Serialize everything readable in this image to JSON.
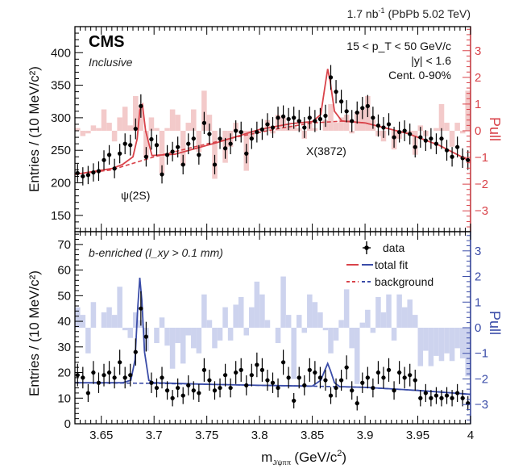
{
  "header": {
    "lumi_value": "1.7 nb",
    "lumi_exp": "-1",
    "lumi_system": "(PbPb 5.02 TeV)"
  },
  "colors": {
    "top_fit": "#d9434a",
    "top_pull_fill": "#f3caca",
    "top_pull_axis": "#d9434a",
    "bottom_fit": "#3a4ca8",
    "bottom_pull_fill": "#cdd3ee",
    "bottom_pull_axis": "#3a4ca8",
    "data": "#000000"
  },
  "chart_data": [
    {
      "type": "scatter",
      "panel": "top",
      "title": "CMS",
      "subtitle": "Inclusive",
      "ylabel": "Entries / (10 MeV/c²)",
      "y2label": "Pull",
      "xlim": [
        3.625,
        4.0
      ],
      "ylim": [
        125,
        440
      ],
      "y2lim": [
        -3.78,
        3.9
      ],
      "yticks": [
        "150",
        "200",
        "250",
        "300",
        "350",
        "400"
      ],
      "y2ticks": [
        "3",
        "2",
        "1",
        "0",
        "-1",
        "-2",
        "-3"
      ],
      "cuts": [
        "15 < p_T < 50 GeV/c",
        "|y| < 1.6",
        "Cent. 0-90%"
      ],
      "peak_labels": [
        "ψ(2S)",
        "X(3872)"
      ],
      "x": [
        3.6275,
        3.6325,
        3.6375,
        3.6425,
        3.6475,
        3.6525,
        3.6575,
        3.6625,
        3.6675,
        3.6725,
        3.6775,
        3.6825,
        3.6875,
        3.6925,
        3.6975,
        3.7025,
        3.7075,
        3.7125,
        3.7175,
        3.7225,
        3.7275,
        3.7325,
        3.7375,
        3.7425,
        3.7475,
        3.7525,
        3.7575,
        3.7625,
        3.7675,
        3.7725,
        3.7775,
        3.7825,
        3.7875,
        3.7925,
        3.7975,
        3.8025,
        3.8075,
        3.8125,
        3.8175,
        3.8225,
        3.8275,
        3.8325,
        3.8375,
        3.8425,
        3.8475,
        3.8525,
        3.8575,
        3.8625,
        3.8675,
        3.8725,
        3.8775,
        3.8825,
        3.8875,
        3.8925,
        3.8975,
        3.9025,
        3.9075,
        3.9125,
        3.9175,
        3.9225,
        3.9275,
        3.9325,
        3.9375,
        3.9425,
        3.9475,
        3.9525,
        3.9575,
        3.9625,
        3.9675,
        3.9725,
        3.9775,
        3.9825,
        3.9875,
        3.9925,
        3.9975
      ],
      "y": [
        215,
        210,
        212,
        216,
        218,
        235,
        243,
        222,
        245,
        260,
        258,
        283,
        318,
        240,
        267,
        258,
        213,
        243,
        248,
        255,
        228,
        260,
        268,
        243,
        292,
        275,
        228,
        268,
        253,
        260,
        280,
        278,
        245,
        268,
        278,
        282,
        290,
        285,
        300,
        302,
        298,
        300,
        295,
        285,
        300,
        295,
        298,
        303,
        362,
        340,
        325,
        310,
        295,
        308,
        315,
        318,
        300,
        288,
        285,
        290,
        270,
        278,
        280,
        275,
        255,
        270,
        265,
        268,
        260,
        268,
        250,
        240,
        255,
        238,
        235
      ],
      "yerr": [
        14,
        14,
        14,
        14,
        15,
        15,
        15,
        15,
        15,
        16,
        16,
        16,
        18,
        15,
        16,
        16,
        14,
        15,
        15,
        16,
        15,
        16,
        16,
        15,
        17,
        16,
        15,
        16,
        16,
        16,
        16,
        16,
        15,
        16,
        16,
        16,
        17,
        16,
        17,
        17,
        17,
        17,
        17,
        16,
        17,
        17,
        17,
        17,
        19,
        18,
        18,
        17,
        17,
        17,
        17,
        17,
        17,
        17,
        16,
        17,
        16,
        16,
        16,
        16,
        16,
        16,
        16,
        16,
        16,
        16,
        16,
        15,
        16,
        15,
        15
      ],
      "pull_x_edges": [
        3.625,
        3.63,
        3.635,
        3.64,
        3.645,
        3.65,
        3.655,
        3.66,
        3.665,
        3.67,
        3.675,
        3.68,
        3.685,
        3.69,
        3.695,
        3.7,
        3.705,
        3.71,
        3.715,
        3.72,
        3.725,
        3.73,
        3.735,
        3.74,
        3.745,
        3.75,
        3.755,
        3.76,
        3.765,
        3.77,
        3.775,
        3.78,
        3.785,
        3.79,
        3.795,
        3.8,
        3.805,
        3.81,
        3.815,
        3.82,
        3.825,
        3.83,
        3.835,
        3.84,
        3.845,
        3.85,
        3.855,
        3.86,
        3.865,
        3.87,
        3.875,
        3.88,
        3.885,
        3.89,
        3.895,
        3.9,
        3.905,
        3.91,
        3.915,
        3.92,
        3.925,
        3.93,
        3.935,
        3.94,
        3.945,
        3.95,
        3.955,
        3.96,
        3.965,
        3.97,
        3.975,
        3.98,
        3.985,
        3.99,
        3.995,
        4.0
      ],
      "pull": [
        0.1,
        -0.2,
        -0.1,
        0.2,
        0.1,
        0.8,
        0.3,
        -0.4,
        0.5,
        0.9,
        0.2,
        1.3,
        0.9,
        -1.0,
        0.5,
        0.1,
        -1.6,
        0.1,
        0.8,
        0.6,
        -1.3,
        0.3,
        0.8,
        -0.8,
        1.5,
        0.6,
        -1.8,
        0.0,
        -1.2,
        -0.6,
        0.3,
        -0.1,
        -1.5,
        -0.3,
        0.0,
        0.1,
        0.4,
        -0.1,
        0.6,
        0.5,
        0.2,
        0.2,
        0.1,
        -0.3,
        0.3,
        0.1,
        0.0,
        0.4,
        1.0,
        0.3,
        0.5,
        0.6,
        -0.1,
        0.7,
        0.8,
        1.3,
        0.4,
        -0.2,
        -0.4,
        0.0,
        -0.7,
        -0.3,
        0.0,
        -0.1,
        -0.9,
        0.2,
        -0.2,
        0.0,
        0.1,
        1.0,
        0.3,
        -0.6,
        0.3,
        -0.1,
        1.5
      ],
      "total_fit": {
        "x": [
          3.625,
          3.66,
          3.67,
          3.68,
          3.684,
          3.6865,
          3.689,
          3.692,
          3.698,
          3.72,
          3.76,
          3.8,
          3.83,
          3.85,
          3.858,
          3.862,
          3.8646,
          3.867,
          3.871,
          3.878,
          3.9,
          3.94,
          3.97,
          4.0
        ],
        "y": [
          213,
          222,
          228,
          240,
          268,
          312,
          320,
          280,
          242,
          244,
          262,
          282,
          291,
          294,
          305,
          348,
          375,
          355,
          310,
          295,
          292,
          276,
          258,
          233
        ]
      },
      "background_fit": {
        "x": [
          3.625,
          3.66,
          3.7,
          3.74,
          3.78,
          3.82,
          3.85,
          3.88,
          3.9,
          3.94,
          3.97,
          4.0
        ],
        "y": [
          213,
          220,
          240,
          256,
          271,
          284,
          292,
          295,
          292,
          276,
          258,
          233
        ]
      }
    },
    {
      "type": "scatter",
      "panel": "bottom",
      "subtitle": "b-enriched (l_xy > 0.1 mm)",
      "ylabel": "Entries / (10 MeV/c²)",
      "y2label": "Pull",
      "xlabel": "m_J/ψππ (GeV/c²)",
      "xlim": [
        3.625,
        4.0
      ],
      "ylim": [
        0,
        75
      ],
      "y2lim": [
        -3.75,
        3.75
      ],
      "yticks": [
        "0",
        "10",
        "20",
        "30",
        "40",
        "50",
        "60",
        "70"
      ],
      "y2ticks": [
        "3",
        "2",
        "1",
        "0",
        "-1",
        "-2",
        "-3"
      ],
      "xticks": [
        "3.65",
        "3.7",
        "3.75",
        "3.8",
        "3.85",
        "3.9",
        "3.95",
        "4"
      ],
      "legend": [
        "data",
        "total fit",
        "background"
      ],
      "x": [
        3.6275,
        3.6325,
        3.6375,
        3.6425,
        3.6475,
        3.6525,
        3.6575,
        3.6625,
        3.6675,
        3.6725,
        3.6775,
        3.6825,
        3.6875,
        3.6925,
        3.6975,
        3.7025,
        3.7075,
        3.7125,
        3.7175,
        3.7225,
        3.7275,
        3.7325,
        3.7375,
        3.7425,
        3.7475,
        3.7525,
        3.7575,
        3.7625,
        3.7675,
        3.7725,
        3.7775,
        3.7825,
        3.7875,
        3.7925,
        3.7975,
        3.8025,
        3.8075,
        3.8125,
        3.8175,
        3.8225,
        3.8275,
        3.8325,
        3.8375,
        3.8425,
        3.8475,
        3.8525,
        3.8575,
        3.8625,
        3.8675,
        3.8725,
        3.8775,
        3.8825,
        3.8875,
        3.8925,
        3.8975,
        3.9025,
        3.9075,
        3.9125,
        3.9175,
        3.9225,
        3.9275,
        3.9325,
        3.9375,
        3.9425,
        3.9475,
        3.9525,
        3.9575,
        3.9625,
        3.9675,
        3.9725,
        3.9775,
        3.9825,
        3.9875,
        3.9925,
        3.9975
      ],
      "y": [
        19,
        18,
        12,
        20,
        16,
        19,
        20,
        18,
        24,
        18,
        19,
        28,
        45,
        34,
        16,
        14,
        18,
        13,
        10,
        14,
        11,
        15,
        13,
        12,
        21,
        17,
        13,
        14,
        19,
        14,
        20,
        21,
        15,
        19,
        23,
        21,
        17,
        16,
        14,
        24,
        18,
        9,
        18,
        15,
        21,
        20,
        18,
        17,
        11,
        14,
        17,
        22,
        13,
        8,
        16,
        18,
        14,
        20,
        18,
        21,
        13,
        20,
        18,
        19,
        17,
        10,
        12,
        10,
        11,
        10,
        11,
        10,
        12,
        10,
        8
      ],
      "yerr": [
        4.4,
        4.2,
        3.5,
        4.5,
        4.0,
        4.4,
        4.5,
        4.2,
        4.9,
        4.2,
        4.4,
        5.3,
        6.7,
        5.8,
        4.0,
        3.7,
        4.2,
        3.6,
        3.2,
        3.7,
        3.3,
        3.9,
        3.6,
        3.5,
        4.6,
        4.1,
        3.6,
        3.7,
        4.4,
        3.7,
        4.5,
        4.6,
        3.9,
        4.4,
        4.8,
        4.6,
        4.1,
        4.0,
        3.7,
        4.9,
        4.2,
        3.0,
        4.2,
        3.9,
        4.6,
        4.5,
        4.2,
        4.1,
        3.3,
        3.7,
        4.1,
        4.7,
        3.6,
        2.8,
        4.0,
        4.2,
        3.7,
        4.5,
        4.2,
        4.6,
        3.6,
        4.5,
        4.2,
        4.4,
        4.1,
        3.2,
        3.5,
        3.2,
        3.3,
        3.2,
        3.3,
        3.2,
        3.5,
        3.2,
        2.8
      ],
      "pull_x_edges": [
        3.625,
        3.63,
        3.635,
        3.64,
        3.645,
        3.65,
        3.655,
        3.66,
        3.665,
        3.67,
        3.675,
        3.68,
        3.685,
        3.69,
        3.695,
        3.7,
        3.705,
        3.71,
        3.715,
        3.72,
        3.725,
        3.73,
        3.735,
        3.74,
        3.745,
        3.75,
        3.755,
        3.76,
        3.765,
        3.77,
        3.775,
        3.78,
        3.785,
        3.79,
        3.795,
        3.8,
        3.805,
        3.81,
        3.815,
        3.82,
        3.825,
        3.83,
        3.835,
        3.84,
        3.845,
        3.85,
        3.855,
        3.86,
        3.865,
        3.87,
        3.875,
        3.88,
        3.885,
        3.89,
        3.895,
        3.9,
        3.905,
        3.91,
        3.915,
        3.92,
        3.925,
        3.93,
        3.935,
        3.94,
        3.945,
        3.95,
        3.955,
        3.96,
        3.965,
        3.97,
        3.975,
        3.98,
        3.985,
        3.99,
        3.995,
        4.0
      ],
      "pull": [
        0.8,
        0.5,
        -1.0,
        1.0,
        0.0,
        0.6,
        0.8,
        0.5,
        1.6,
        -0.1,
        -0.4,
        0.6,
        0.3,
        -0.9,
        0.0,
        -0.6,
        0.4,
        -0.7,
        -1.6,
        -0.6,
        -1.4,
        -0.3,
        -0.8,
        -1.0,
        1.3,
        0.3,
        -0.8,
        -0.5,
        0.8,
        -0.5,
        0.9,
        1.2,
        -0.3,
        0.8,
        1.8,
        1.3,
        0.3,
        0.0,
        -0.6,
        2.0,
        0.5,
        -2.0,
        0.5,
        -0.2,
        1.3,
        1.0,
        0.6,
        -0.1,
        -1.0,
        -0.5,
        0.3,
        1.5,
        -0.8,
        -2.2,
        0.2,
        0.7,
        -0.2,
        1.2,
        0.6,
        1.3,
        -0.5,
        1.3,
        0.8,
        1.1,
        0.5,
        -1.5,
        -0.9,
        -1.5,
        -1.1,
        -1.3,
        -1.0,
        -1.3,
        -0.8,
        -1.2,
        -1.9
      ],
      "total_fit": {
        "x": [
          3.625,
          3.67,
          3.678,
          3.682,
          3.6845,
          3.6865,
          3.6885,
          3.691,
          3.695,
          3.7,
          3.75,
          3.8,
          3.85,
          3.858,
          3.862,
          3.8646,
          3.867,
          3.871,
          3.876,
          3.9,
          3.95,
          4.0
        ],
        "y": [
          16,
          16,
          17,
          25,
          45,
          57,
          48,
          28,
          17,
          16,
          15.4,
          15.0,
          14.7,
          17,
          21,
          23.5,
          21,
          16,
          14.5,
          14.2,
          13.0,
          11.5
        ]
      },
      "background_fit": {
        "x": [
          3.625,
          3.7,
          3.75,
          3.8,
          3.85,
          3.9,
          3.95,
          4.0
        ],
        "y": [
          16,
          15.8,
          15.4,
          15.0,
          14.7,
          14.2,
          13.0,
          11.5
        ]
      }
    }
  ]
}
